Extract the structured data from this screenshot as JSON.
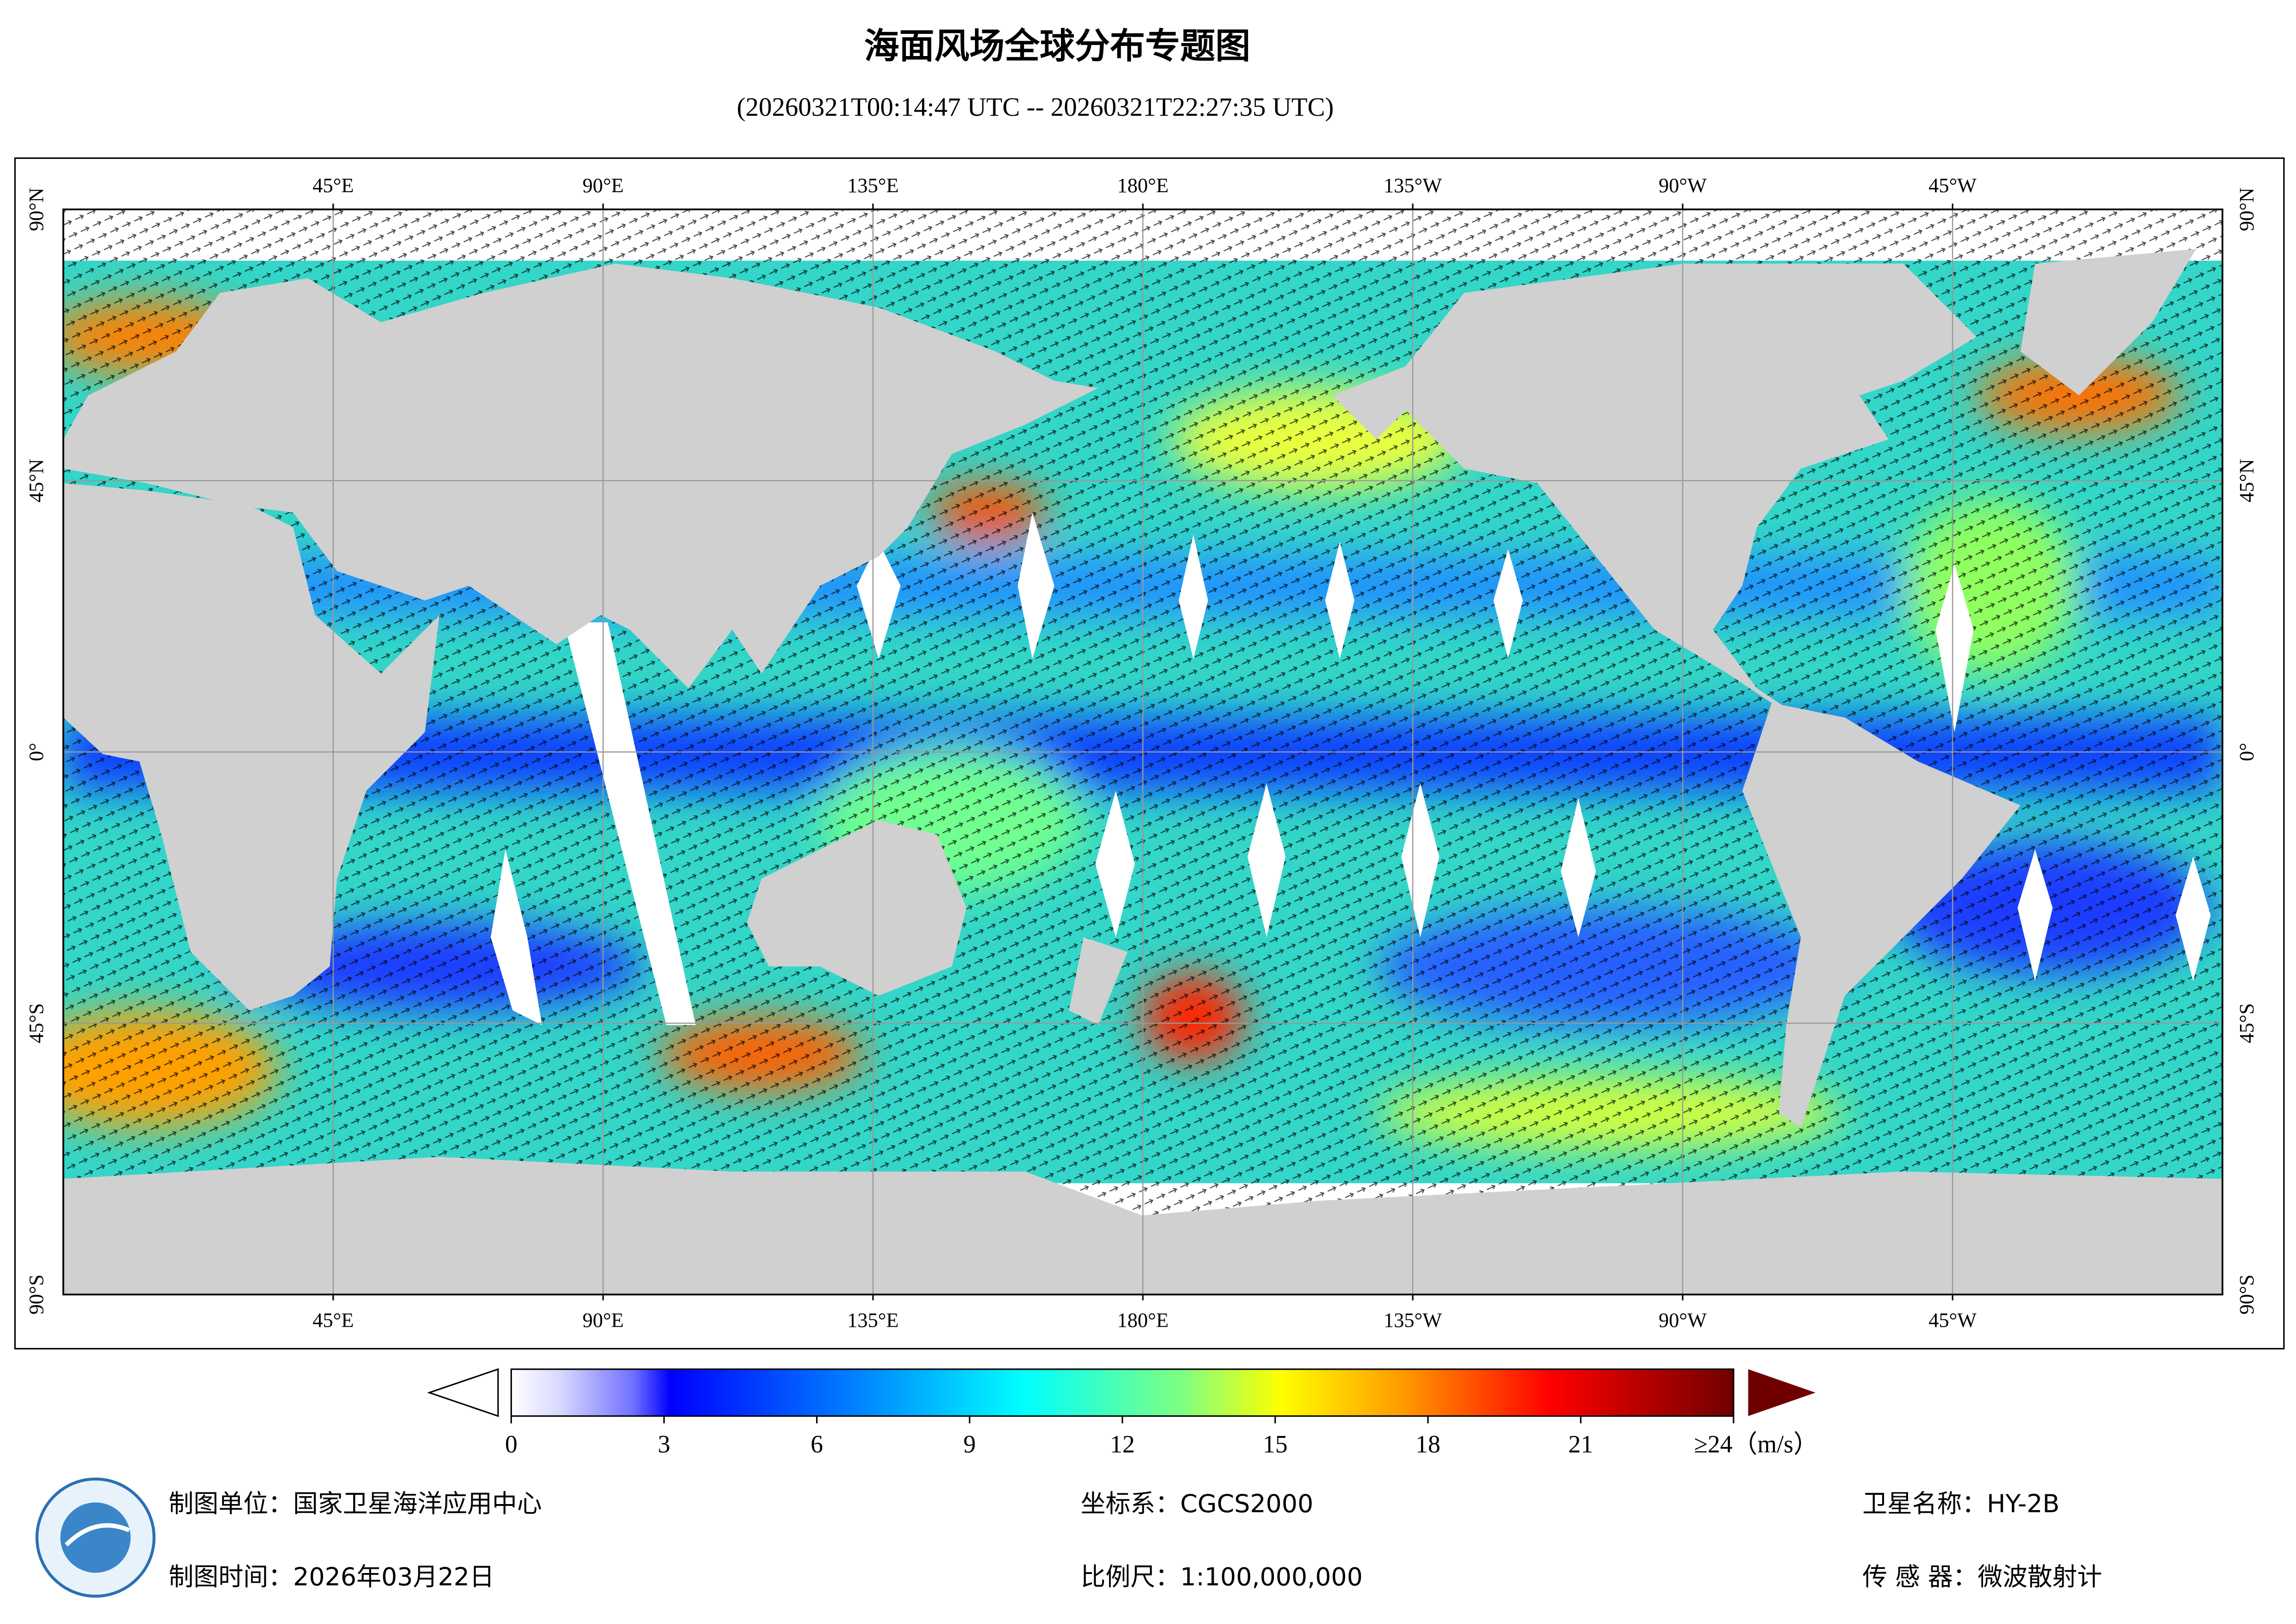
{
  "header": {
    "title": "海面风场全球分布专题图",
    "subtitle": "(20260321T00:14:47 UTC -- 20260321T22:27:35 UTC)"
  },
  "map": {
    "xlim": [
      0,
      360
    ],
    "ylim": [
      -90,
      90
    ],
    "lon_ticks": [
      {
        "value": 45,
        "label": "45°E"
      },
      {
        "value": 90,
        "label": "90°E"
      },
      {
        "value": 135,
        "label": "135°E"
      },
      {
        "value": 180,
        "label": "180°E"
      },
      {
        "value": 225,
        "label": "135°W"
      },
      {
        "value": 270,
        "label": "90°W"
      },
      {
        "value": 315,
        "label": "45°W"
      }
    ],
    "lat_ticks": [
      {
        "value": 90,
        "label": "90°N"
      },
      {
        "value": 45,
        "label": "45°N"
      },
      {
        "value": 0,
        "label": "0°"
      },
      {
        "value": -45,
        "label": "45°S"
      },
      {
        "value": -90,
        "label": "90°S"
      }
    ]
  },
  "colorbar": {
    "range": [
      0,
      24
    ],
    "ticks": [
      0,
      3,
      6,
      9,
      12,
      15,
      18,
      21,
      {
        "value": 24,
        "label": "≥24（m/s）"
      }
    ]
  },
  "footer": {
    "producer": "制图单位：国家卫星海洋应用中心",
    "date": "制图时间：2026年03月22日",
    "crs": "坐标系：CGCS2000",
    "scale": "比例尺：1:100,000,000",
    "satellite": "卫星名称：HY-2B",
    "sensor": "传 感 器：微波散射计"
  }
}
